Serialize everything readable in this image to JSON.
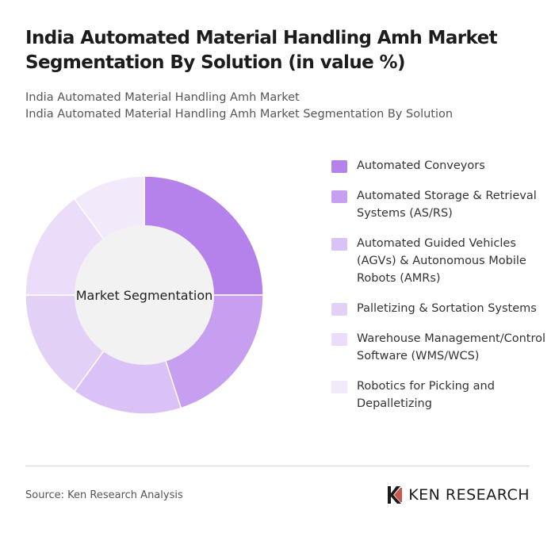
{
  "header": {
    "title": "India Automated Material Handling Amh Market Segmentation By Solution (in value %)",
    "subtitle_line1": "India Automated Material Handling Amh Market",
    "subtitle_line2": "India Automated Material Handling Amh Market Segmentation By Solution"
  },
  "chart_data": {
    "type": "pie",
    "center_label": "Market Segmentation",
    "categories": [
      "Automated Conveyors",
      "Automated Storage & Retrieval Systems (AS/RS)",
      "Automated Guided Vehicles (AGVs) & Autonomous Mobile Robots (AMRs)",
      "Palletizing & Sortation Systems",
      "Warehouse Management/Control Software (WMS/WCS)",
      "Robotics for Picking and Depalletizing"
    ],
    "values": [
      25,
      20,
      15,
      15,
      15,
      10
    ],
    "colors": [
      "#b482ea",
      "#c79ff0",
      "#dbc2f6",
      "#e3d0f7",
      "#ebdcf9",
      "#f2eafb"
    ],
    "legend_position": "right"
  },
  "footer": {
    "source": "Source: Ken Research Analysis",
    "brand": "KEN RESEARCH"
  }
}
